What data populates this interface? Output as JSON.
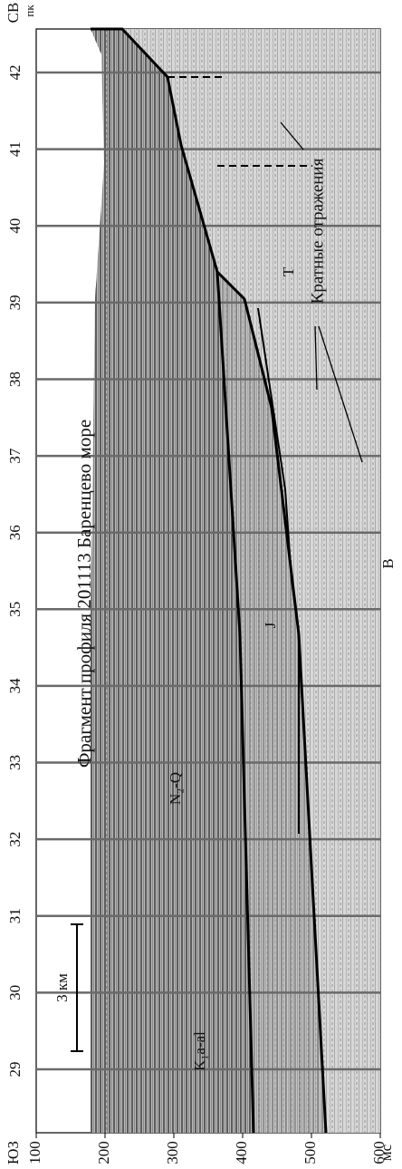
{
  "header": {
    "left_end": "ЮЗ",
    "right_end": "СВ",
    "picket_unit": "пк",
    "time_unit": "мс"
  },
  "title": "Фрагмент профиля 201113  Баренцево море",
  "time_ticks": [
    "100",
    "200",
    "300",
    "400",
    "500",
    "600"
  ],
  "picket_ticks": [
    "29",
    "30",
    "31",
    "32",
    "33",
    "34",
    "35",
    "36",
    "37",
    "38",
    "39",
    "40",
    "41",
    "42"
  ],
  "scale_bar": "3 км",
  "labels": {
    "n2q": "N₂-Q",
    "k1": "K₁a-al",
    "j": "J",
    "t": "T",
    "multiples": "Кратные отражения",
    "b": "В"
  }
}
